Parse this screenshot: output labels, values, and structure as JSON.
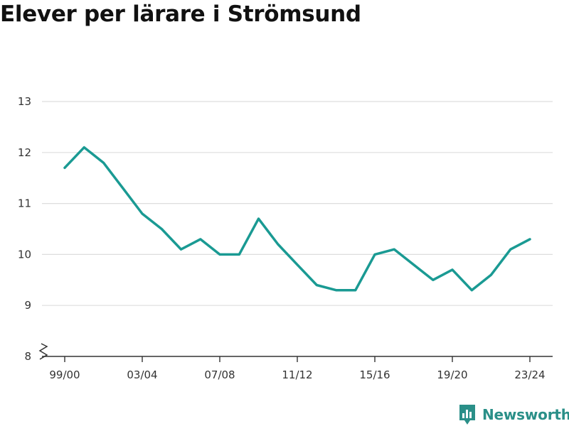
{
  "chart_data": {
    "type": "line",
    "title": "Elever per lärare i Strömsund",
    "xlabel": "",
    "ylabel": "",
    "ylim": [
      8,
      13
    ],
    "yticks": [
      8,
      9,
      10,
      11,
      12,
      13
    ],
    "x": [
      "99/00",
      "00/01",
      "01/02",
      "02/03",
      "03/04",
      "04/05",
      "05/06",
      "06/07",
      "07/08",
      "08/09",
      "09/10",
      "10/11",
      "11/12",
      "12/13",
      "13/14",
      "14/15",
      "15/16",
      "16/17",
      "17/18",
      "18/19",
      "19/20",
      "20/21",
      "21/22",
      "22/23",
      "23/24"
    ],
    "xtick_labels": [
      "99/00",
      "03/04",
      "07/08",
      "11/12",
      "15/16",
      "19/20",
      "23/24"
    ],
    "series": [
      {
        "values": [
          11.7,
          12.1,
          11.8,
          11.3,
          10.8,
          10.5,
          10.1,
          10.3,
          10.0,
          10.0,
          10.7,
          10.2,
          9.8,
          9.4,
          9.3,
          9.3,
          10.0,
          10.1,
          9.8,
          9.5,
          9.7,
          9.3,
          9.6,
          10.1,
          10.3
        ],
        "color": "#1a9a93"
      }
    ],
    "grid": true,
    "axis_break": true
  },
  "brand": {
    "name": "Newsworthy",
    "color": "#2a8f88",
    "icon": "bar-chart-logo-icon"
  }
}
